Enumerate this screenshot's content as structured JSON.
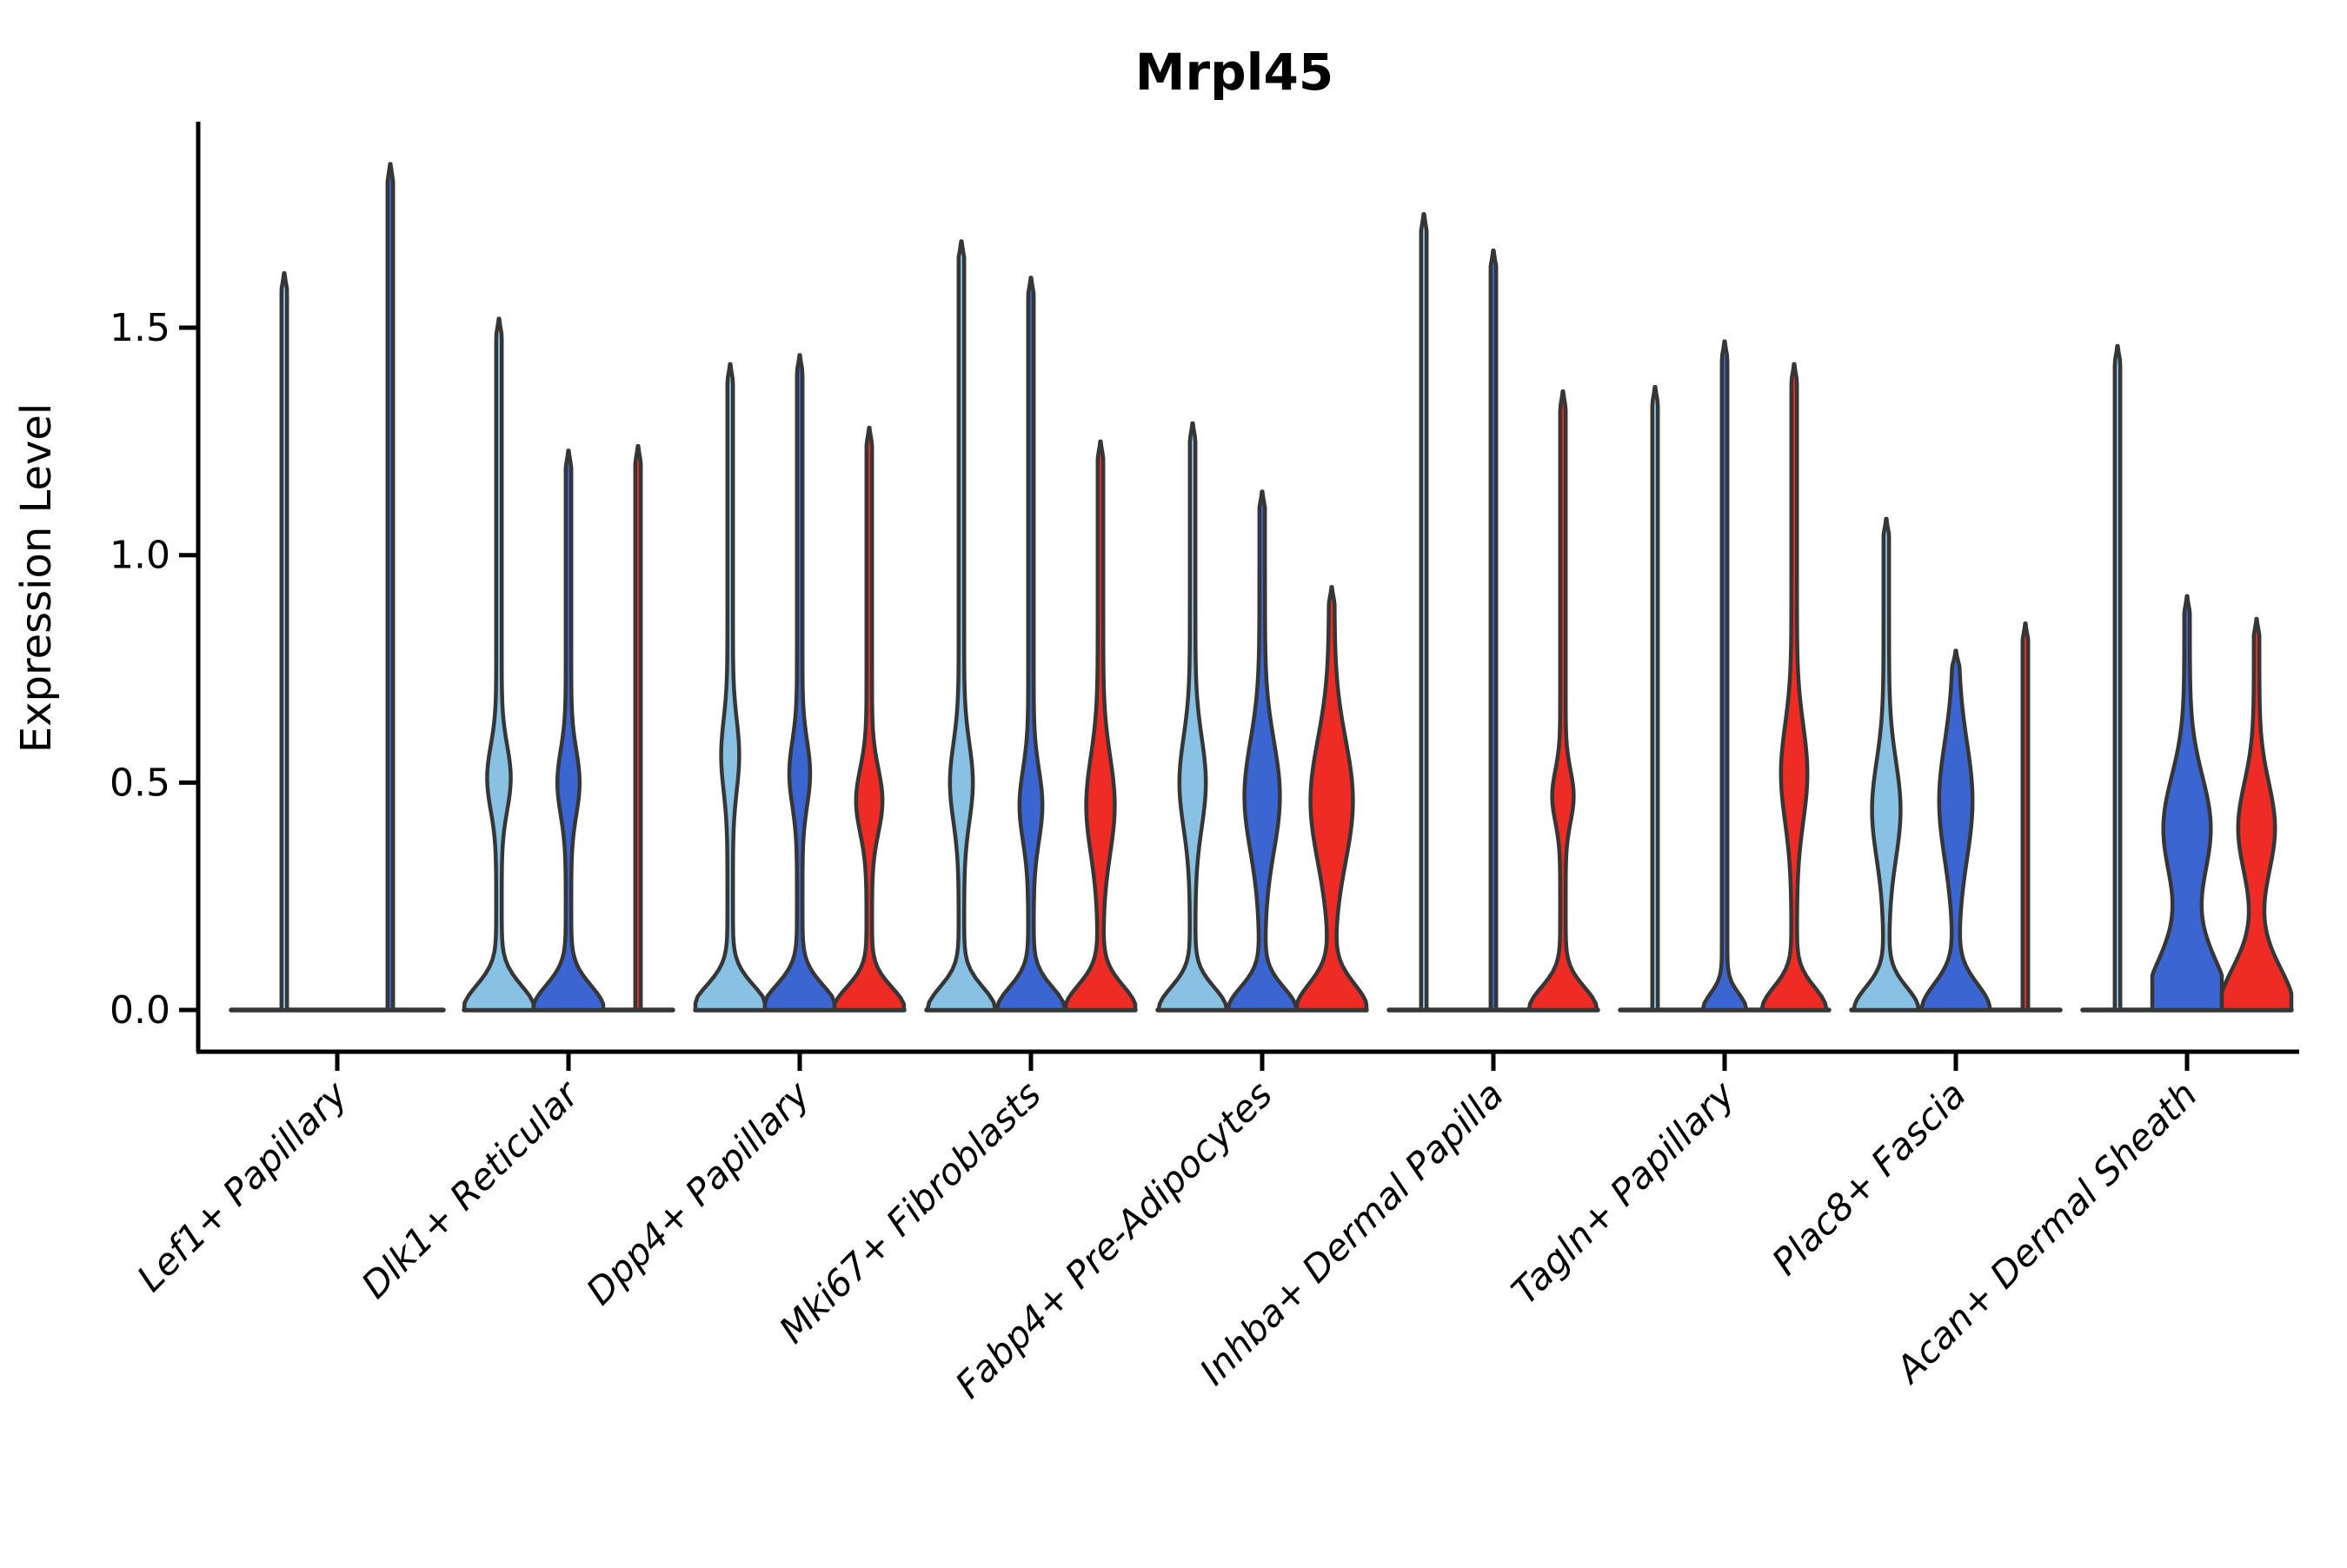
{
  "chart_data": {
    "type": "violin",
    "title": "Mrpl45",
    "ylabel": "Expression Level",
    "xlabel": "",
    "grid": false,
    "legend": "none",
    "ylim": [
      -0.09,
      1.95
    ],
    "yticks": [
      {
        "value": 0.0,
        "label": "0.0"
      },
      {
        "value": 0.5,
        "label": "0.5"
      },
      {
        "value": 1.0,
        "label": "1.0"
      },
      {
        "value": 1.5,
        "label": "1.5"
      }
    ],
    "categories": [
      "Lef1+ Papillary",
      "Dlk1+ Reticular",
      "Dpp4+ Papillary",
      "Mki67+ Fibroblasts",
      "Fabp4+ Pre-Adipocytes",
      "Inhba+ Dermal Papilla",
      "Tagln+ Papillary",
      "Plac8+ Fascia",
      "Acan+ Dermal Sheath"
    ],
    "series_colors": {
      "light_blue": "#87C1E4",
      "dark_blue": "#3B66D2",
      "red": "#EE2B24"
    },
    "outline_color": "#363636",
    "groups": [
      {
        "category": "Lef1+ Papillary",
        "violins": [
          {
            "series": "light_blue",
            "max": 1.62,
            "shape": "spike"
          },
          {
            "series": "dark_blue",
            "max": 1.86,
            "shape": "spike"
          }
        ]
      },
      {
        "category": "Dlk1+ Reticular",
        "violins": [
          {
            "series": "light_blue",
            "max": 1.52,
            "shape": "bulge",
            "lens": [
              0.51,
              0.26,
              0.1
            ],
            "base": [
              0.95,
              0.075
            ]
          },
          {
            "series": "dark_blue",
            "max": 1.23,
            "shape": "bulge",
            "lens": [
              0.5,
              0.24,
              0.1
            ],
            "base": [
              0.95,
              0.075
            ]
          },
          {
            "series": "red",
            "max": 1.24,
            "shape": "spike"
          }
        ]
      },
      {
        "category": "Dpp4+ Papillary",
        "violins": [
          {
            "series": "light_blue",
            "max": 1.42,
            "shape": "bulge",
            "lens": [
              0.56,
              0.18,
              0.11
            ],
            "base": [
              1.0,
              0.075
            ]
          },
          {
            "series": "dark_blue",
            "max": 1.44,
            "shape": "bulge",
            "lens": [
              0.52,
              0.22,
              0.1
            ],
            "base": [
              1.0,
              0.075
            ]
          },
          {
            "series": "red",
            "max": 1.28,
            "shape": "bulge",
            "lens": [
              0.46,
              0.3,
              0.1
            ],
            "base": [
              0.95,
              0.07
            ]
          }
        ]
      },
      {
        "category": "Mki67+ Fibroblasts",
        "violins": [
          {
            "series": "light_blue",
            "max": 1.69,
            "shape": "bulge",
            "lens": [
              0.5,
              0.25,
              0.12
            ],
            "base": [
              0.9,
              0.07
            ]
          },
          {
            "series": "dark_blue",
            "max": 1.61,
            "shape": "bulge",
            "lens": [
              0.45,
              0.25,
              0.11
            ],
            "base": [
              0.9,
              0.07
            ]
          },
          {
            "series": "red",
            "max": 1.25,
            "shape": "bulge",
            "lens": [
              0.45,
              0.33,
              0.15
            ],
            "base": [
              0.95,
              0.075
            ]
          }
        ]
      },
      {
        "category": "Fabp4+ Pre-Adipocytes",
        "violins": [
          {
            "series": "light_blue",
            "max": 1.29,
            "shape": "bulge",
            "lens": [
              0.5,
              0.3,
              0.14
            ],
            "base": [
              0.9,
              0.07
            ]
          },
          {
            "series": "dark_blue",
            "max": 1.14,
            "shape": "bulge",
            "lens": [
              0.47,
              0.43,
              0.17
            ],
            "base": [
              0.9,
              0.07
            ]
          },
          {
            "series": "red",
            "max": 0.93,
            "shape": "bulge",
            "lens": [
              0.46,
              0.53,
              0.19
            ],
            "base": [
              0.95,
              0.08
            ]
          }
        ]
      },
      {
        "category": "Inhba+ Dermal Papilla",
        "violins": [
          {
            "series": "light_blue",
            "max": 1.75,
            "shape": "spike"
          },
          {
            "series": "dark_blue",
            "max": 1.67,
            "shape": "spike"
          },
          {
            "series": "red",
            "max": 1.36,
            "shape": "bulge",
            "lens": [
              0.47,
              0.23,
              0.08
            ],
            "base": [
              0.9,
              0.07
            ]
          }
        ]
      },
      {
        "category": "Tagln+ Papillary",
        "violins": [
          {
            "series": "light_blue",
            "max": 1.37,
            "shape": "spike"
          },
          {
            "series": "dark_blue",
            "max": 1.47,
            "shape": "base-only",
            "base": [
              0.55,
              0.05
            ]
          },
          {
            "series": "red",
            "max": 1.42,
            "shape": "bulge",
            "lens": [
              0.52,
              0.3,
              0.15
            ],
            "base": [
              0.85,
              0.07
            ]
          }
        ]
      },
      {
        "category": "Plac8+ Fascia",
        "violins": [
          {
            "series": "light_blue",
            "max": 1.08,
            "shape": "bulge",
            "lens": [
              0.44,
              0.33,
              0.15
            ],
            "base": [
              0.85,
              0.07
            ]
          },
          {
            "series": "dark_blue",
            "max": 0.79,
            "shape": "bulge",
            "lens": [
              0.46,
              0.4,
              0.18
            ],
            "base": [
              0.9,
              0.08
            ]
          },
          {
            "series": "red",
            "max": 0.85,
            "shape": "spike"
          }
        ]
      },
      {
        "category": "Acan+ Dermal Sheath",
        "violins": [
          {
            "series": "light_blue",
            "max": 1.46,
            "shape": "spike"
          },
          {
            "series": "dark_blue",
            "max": 0.91,
            "shape": "wide",
            "lens": [
              0.4,
              0.6,
              0.16
            ],
            "base": [
              1.15,
              0.16
            ]
          },
          {
            "series": "red",
            "max": 0.86,
            "shape": "wide",
            "lens": [
              0.4,
              0.45,
              0.14
            ],
            "base": [
              1.0,
              0.13
            ]
          }
        ]
      }
    ]
  }
}
